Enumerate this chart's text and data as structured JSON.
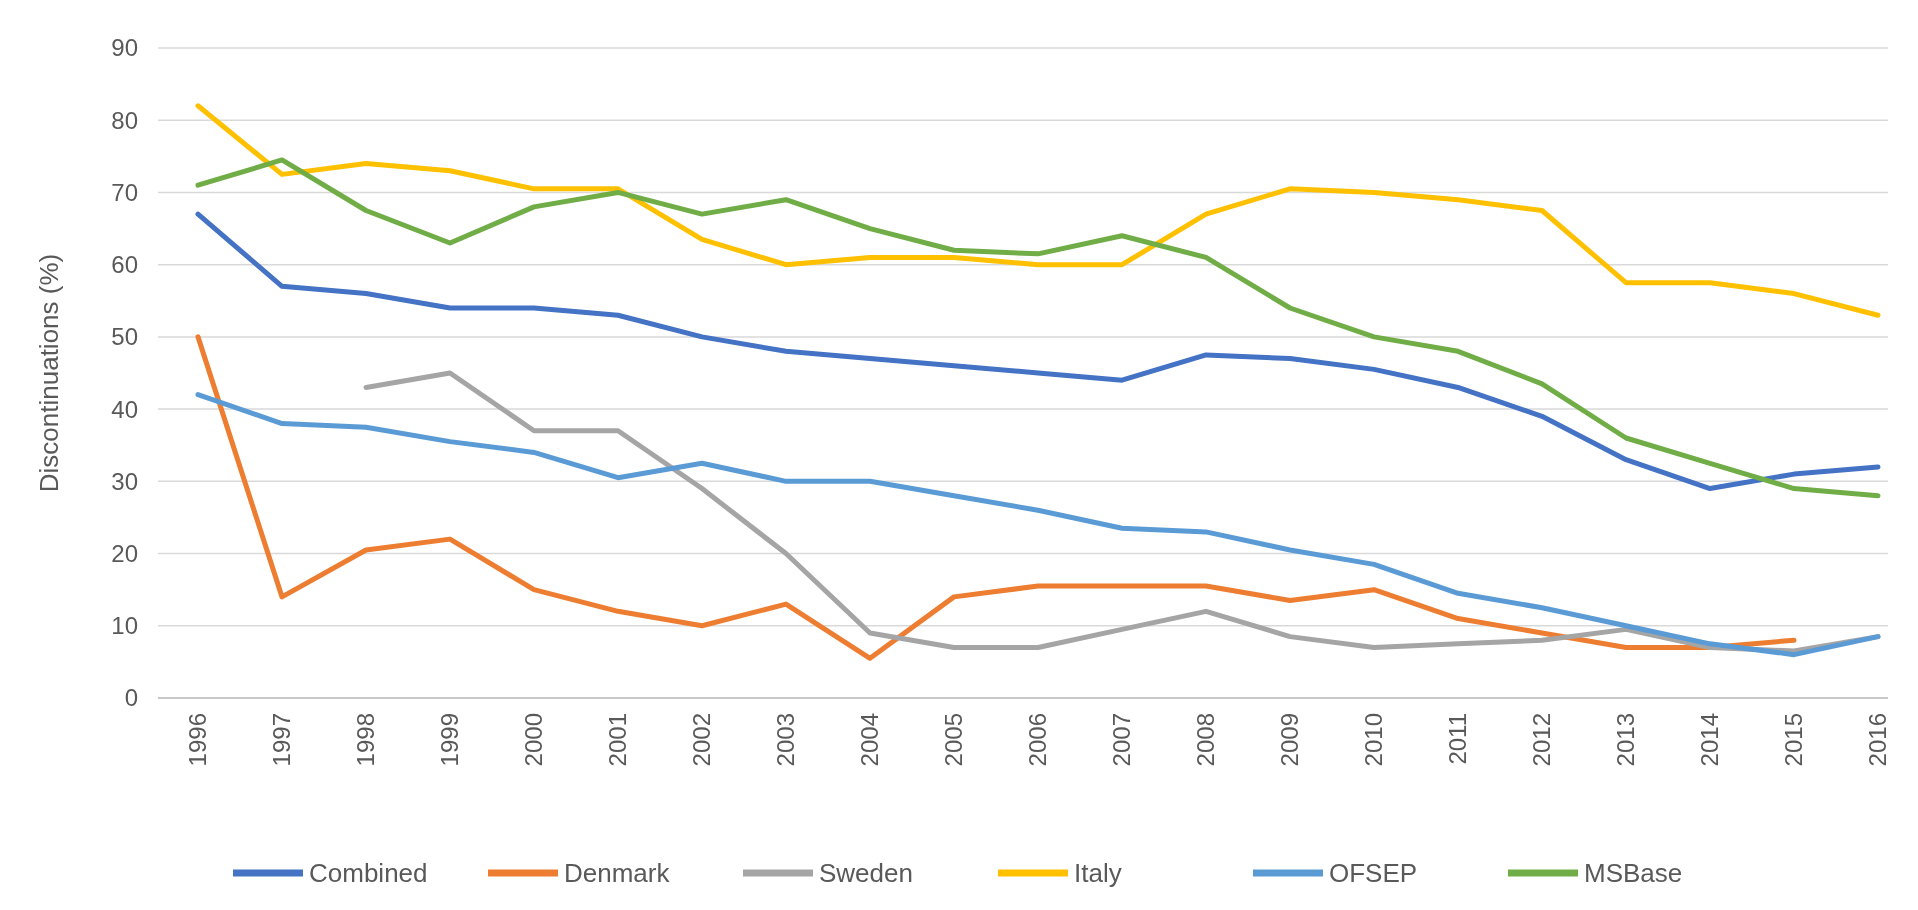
{
  "chart_data": {
    "type": "line",
    "ylabel": "Discontinuations (%)",
    "categories": [
      "1996",
      "1997",
      "1998",
      "1999",
      "2000",
      "2001",
      "2002",
      "2003",
      "2004",
      "2005",
      "2006",
      "2007",
      "2008",
      "2009",
      "2010",
      "2011",
      "2012",
      "2013",
      "2014",
      "2015",
      "2016"
    ],
    "ylim": [
      0,
      90
    ],
    "yticks": [
      0,
      10,
      20,
      30,
      40,
      50,
      60,
      70,
      80,
      90
    ],
    "grid": "y",
    "legend": "bottom",
    "line_style": "solid",
    "marker": "none",
    "series": [
      {
        "name": "Combined",
        "color": "#4472c4",
        "values": [
          67,
          57,
          56,
          54,
          54,
          53,
          50,
          48,
          47,
          46,
          45,
          44,
          47.5,
          47,
          45.5,
          43,
          39,
          33,
          29,
          31,
          32
        ]
      },
      {
        "name": "Denmark",
        "color": "#ed7d31",
        "values": [
          50,
          14,
          20.5,
          22,
          15,
          12,
          10,
          13,
          5.5,
          14,
          15.5,
          15.5,
          15.5,
          13.5,
          15,
          11,
          9,
          7,
          7,
          8,
          null
        ]
      },
      {
        "name": "Sweden",
        "color": "#a5a5a5",
        "values": [
          null,
          null,
          43,
          45,
          37,
          37,
          29,
          20,
          9,
          7,
          7,
          9.5,
          12,
          8.5,
          7,
          7.5,
          8,
          9.5,
          7,
          6.5,
          8.5
        ]
      },
      {
        "name": "Italy",
        "color": "#ffc000",
        "values": [
          82,
          72.5,
          74,
          73,
          70.5,
          70.5,
          63.5,
          60,
          61,
          61,
          60,
          60,
          67,
          70.5,
          70,
          69,
          67.5,
          57.5,
          57.5,
          56,
          53
        ]
      },
      {
        "name": "OFSEP",
        "color": "#5b9bd5",
        "values": [
          42,
          38,
          37.5,
          35.5,
          34,
          30.5,
          32.5,
          30,
          30,
          28,
          26,
          23.5,
          23,
          20.5,
          18.5,
          14.5,
          12.5,
          10,
          7.5,
          6,
          8.5
        ]
      },
      {
        "name": "MSBase",
        "color": "#70ad47",
        "values": [
          71,
          74.5,
          67.5,
          63,
          68,
          70,
          67,
          69,
          65,
          62,
          61.5,
          64,
          61,
          54,
          50,
          48,
          43.5,
          36,
          32.5,
          29,
          28
        ]
      }
    ]
  }
}
